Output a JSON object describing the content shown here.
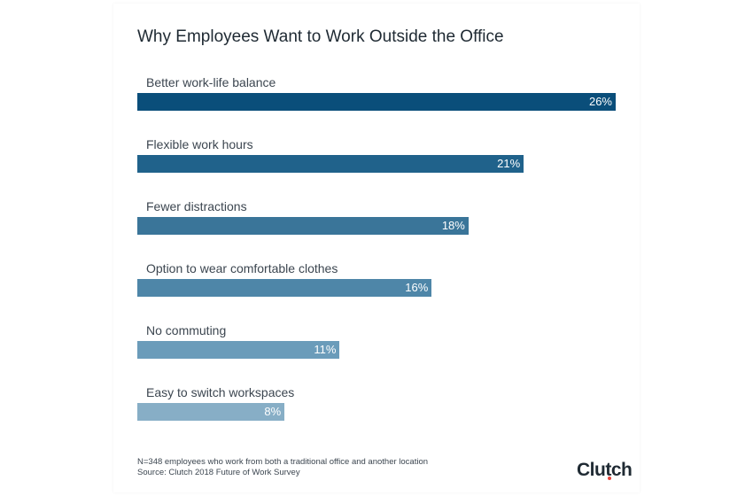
{
  "chart_data": {
    "type": "bar",
    "orientation": "horizontal",
    "title": "Why Employees Want to Work Outside the Office",
    "categories": [
      "Better work-life balance",
      "Flexible work hours",
      "Fewer distractions",
      "Option to wear comfortable clothes",
      "No commuting",
      "Easy to switch workspaces"
    ],
    "values": [
      26,
      21,
      18,
      16,
      11,
      8
    ],
    "value_labels": [
      "26%",
      "21%",
      "18%",
      "16%",
      "11%",
      "8%"
    ],
    "xlim": [
      0,
      26
    ],
    "grid": false,
    "colors": [
      "#0a4e7a",
      "#20628b",
      "#3a7599",
      "#4e86a8",
      "#6b9cba",
      "#87aec6"
    ]
  },
  "footnote": {
    "sample": "N=348 employees who work from both a traditional office and another location",
    "source": "Source: Clutch 2018 Future of Work Survey"
  },
  "logo": {
    "text": "Clutch",
    "dot_color": "#e8453c"
  }
}
